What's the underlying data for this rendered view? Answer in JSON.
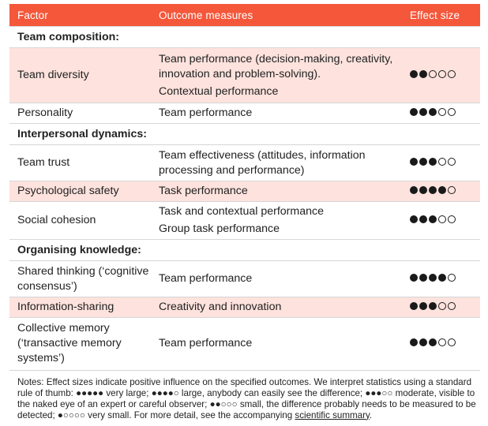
{
  "columns": {
    "factor": "Factor",
    "outcomes": "Outcome measures",
    "effect": "Effect size"
  },
  "sections": [
    {
      "title": "Team composition:",
      "rows": [
        {
          "factor": "Team diversity",
          "outcomes": [
            "Team performance (decision-making, creativity, innovation and problem-solving).",
            "Contextual performance"
          ],
          "effect_level": 2,
          "effect_max": 5,
          "shaded": true
        },
        {
          "factor": "Personality",
          "outcomes": [
            "Team performance"
          ],
          "effect_level": 3,
          "effect_max": 5,
          "shaded": false
        }
      ]
    },
    {
      "title": "Interpersonal dynamics:",
      "rows": [
        {
          "factor": "Team trust",
          "outcomes": [
            "Team effectiveness (attitudes, information processing and performance)"
          ],
          "effect_level": 3,
          "effect_max": 5,
          "shaded": false
        },
        {
          "factor": "Psychological safety",
          "outcomes": [
            "Task performance"
          ],
          "effect_level": 4,
          "effect_max": 5,
          "shaded": true
        },
        {
          "factor": "Social cohesion",
          "outcomes": [
            "Task and contextual performance",
            "Group task performance"
          ],
          "effect_level": 3,
          "effect_max": 5,
          "shaded": false
        }
      ]
    },
    {
      "title": "Organising knowledge:",
      "rows": [
        {
          "factor": "Shared thinking (‘cognitive consensus’)",
          "outcomes": [
            "Team performance"
          ],
          "effect_level": 4,
          "effect_max": 5,
          "shaded": false
        },
        {
          "factor": "Information-sharing",
          "outcomes": [
            "Creativity and innovation"
          ],
          "effect_level": 3,
          "effect_max": 5,
          "shaded": true
        },
        {
          "factor": "Collective memory (‘transactive memory systems’)",
          "outcomes": [
            "Team performance"
          ],
          "effect_level": 3,
          "effect_max": 5,
          "shaded": false
        }
      ]
    }
  ],
  "notes": {
    "text": "Notes: Effect sizes indicate positive influence on the specified outcomes. We interpret statistics using a standard rule of thumb: ●●●●● very large; ●●●●○ large, anybody can easily see the difference; ●●●○○ moderate, visible to the naked eye of an expert or careful observer; ●●○○○ small, the difference probably needs to be measured to be detected; ●○○○○ very small. For more detail, see the accompanying ",
    "link": "scientific summary",
    "end": "."
  },
  "colors": {
    "header_bg": "#f4573a",
    "shade_bg": "#fde2dd"
  }
}
